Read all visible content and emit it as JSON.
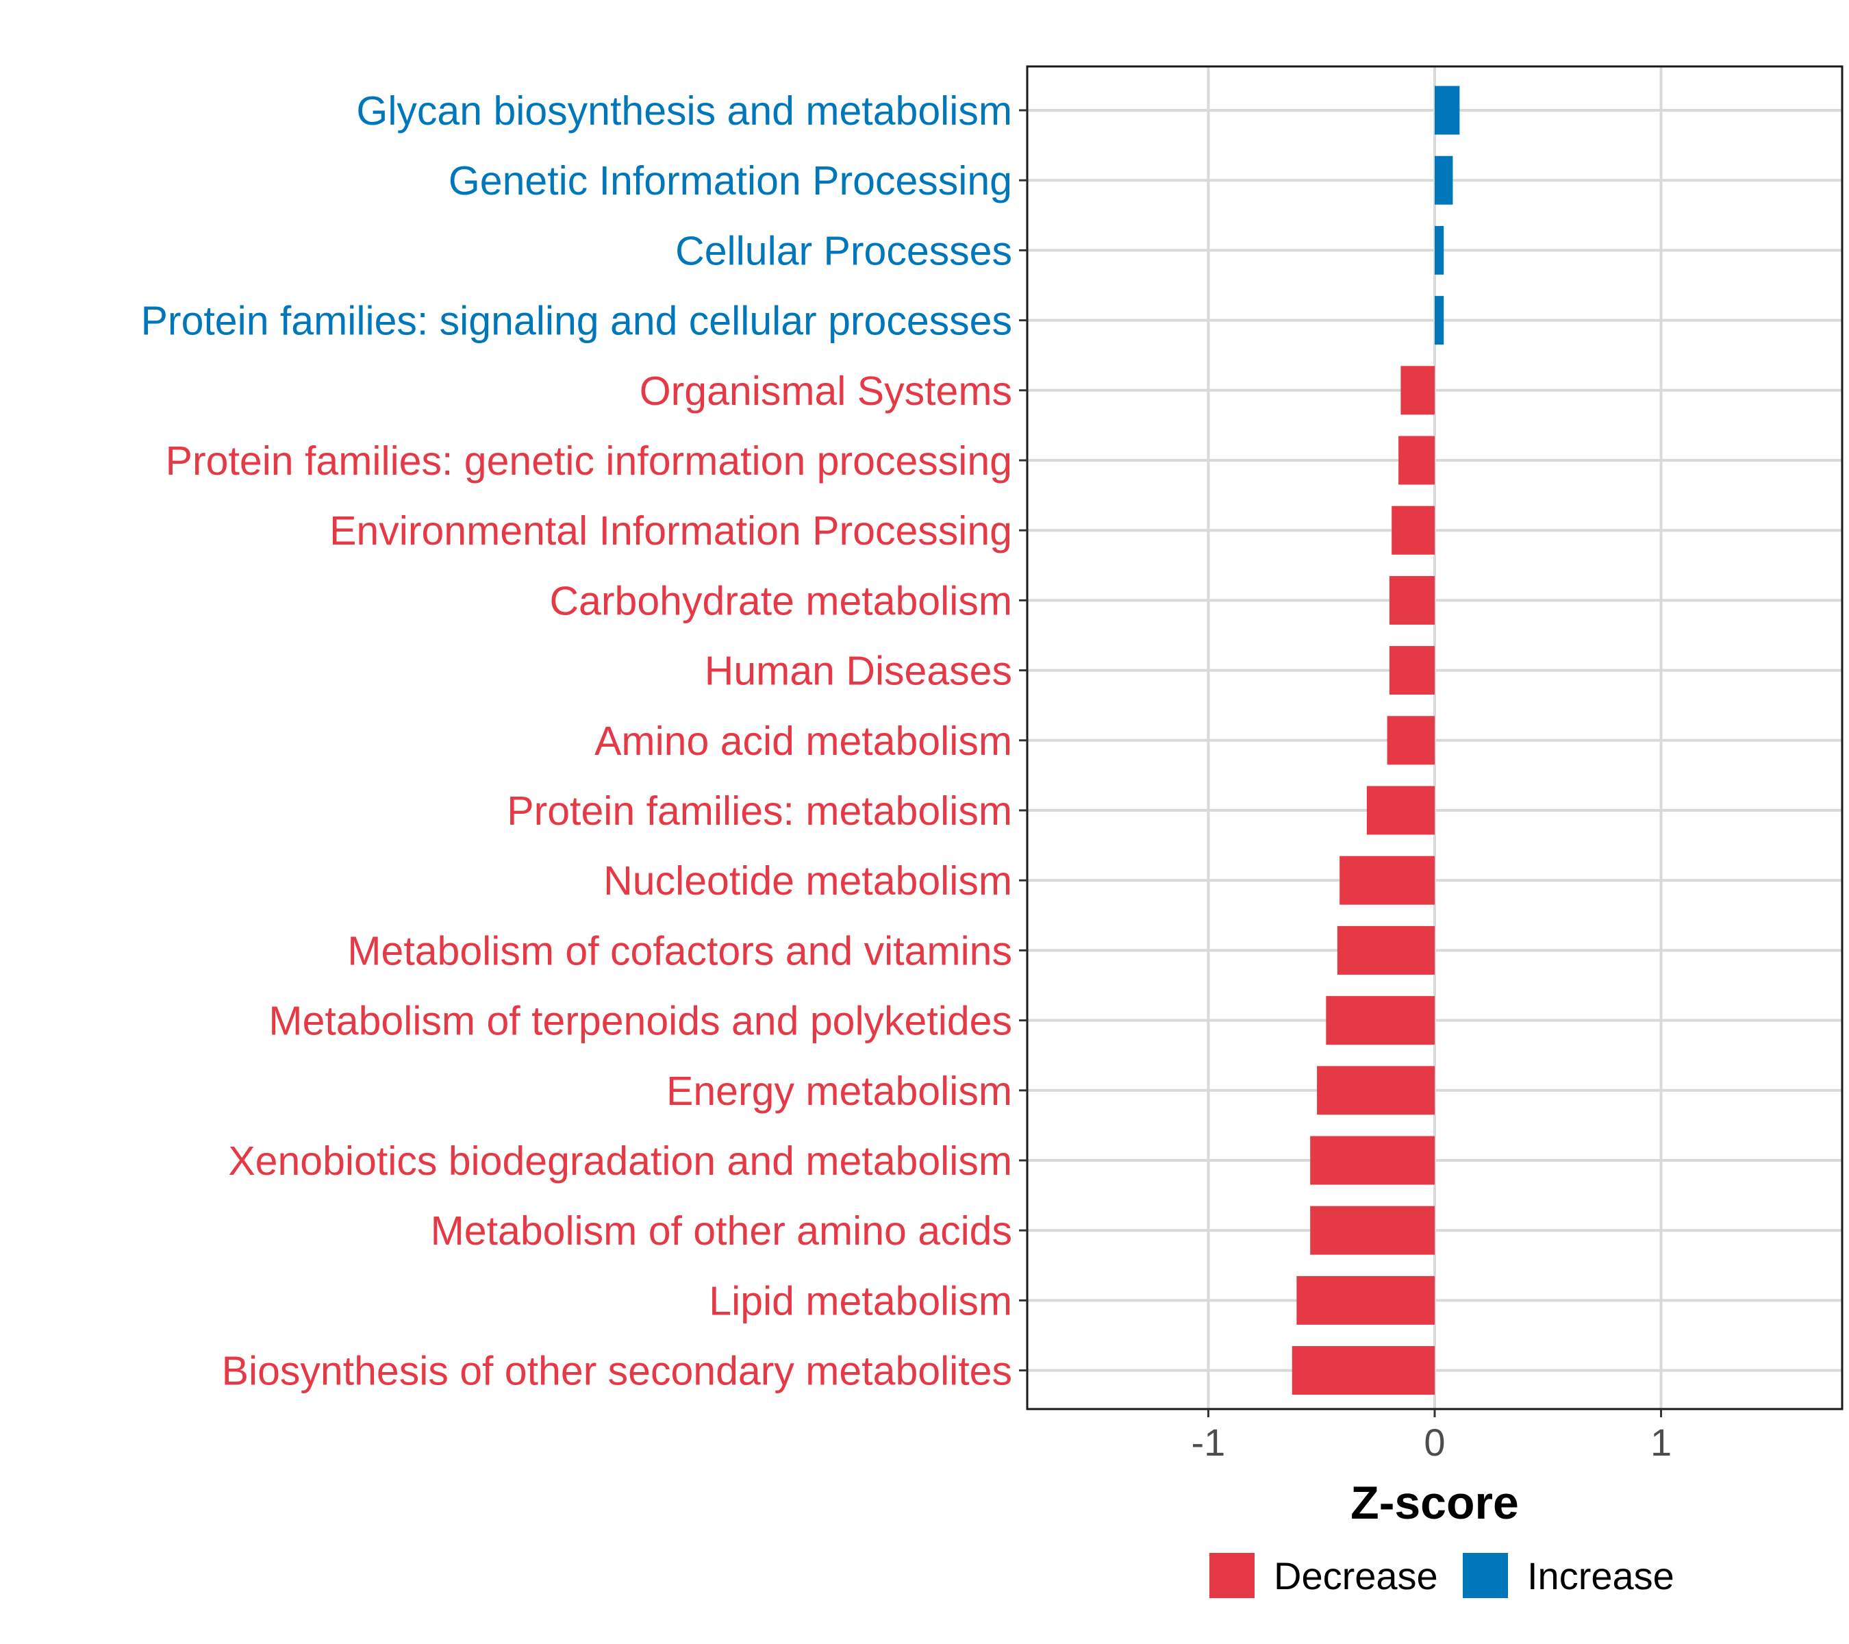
{
  "colors": {
    "decrease": "#E63946",
    "increase": "#0077BB",
    "grid": "#D9D9D9",
    "axis_text": "#4D4D4D",
    "panel_border": "#1A1A1A"
  },
  "legend": {
    "items": [
      {
        "label": "Decrease",
        "color_key": "decrease"
      },
      {
        "label": "Increase",
        "color_key": "increase"
      }
    ],
    "placement": "bottom"
  },
  "chart_data": {
    "type": "bar",
    "orientation": "horizontal",
    "title": "",
    "xlabel": "Z-score",
    "ylabel": "",
    "xlim": [
      -1.8,
      1.8
    ],
    "xticks": [
      -1,
      0,
      1
    ],
    "xtick_labels": [
      "-1",
      "0",
      "1"
    ],
    "grid": true,
    "categories": [
      "Glycan biosynthesis and metabolism",
      "Genetic Information Processing",
      "Cellular Processes",
      "Protein families: signaling and cellular processes",
      "Organismal Systems",
      "Protein families: genetic information processing",
      "Environmental Information Processing",
      "Carbohydrate metabolism",
      "Human Diseases",
      "Amino acid metabolism",
      "Protein families: metabolism",
      "Nucleotide metabolism",
      "Metabolism of cofactors and vitamins",
      "Metabolism of terpenoids and polyketides",
      "Energy metabolism",
      "Xenobiotics biodegradation and metabolism",
      "Metabolism of other amino acids",
      "Lipid metabolism",
      "Biosynthesis of other secondary metabolites"
    ],
    "values": [
      0.11,
      0.08,
      0.04,
      0.04,
      -0.15,
      -0.16,
      -0.19,
      -0.2,
      -0.2,
      -0.21,
      -0.3,
      -0.42,
      -0.43,
      -0.48,
      -0.52,
      -0.55,
      -0.55,
      -0.61,
      -0.63
    ],
    "groups": [
      "Increase",
      "Increase",
      "Increase",
      "Increase",
      "Decrease",
      "Decrease",
      "Decrease",
      "Decrease",
      "Decrease",
      "Decrease",
      "Decrease",
      "Decrease",
      "Decrease",
      "Decrease",
      "Decrease",
      "Decrease",
      "Decrease",
      "Decrease",
      "Decrease"
    ]
  }
}
